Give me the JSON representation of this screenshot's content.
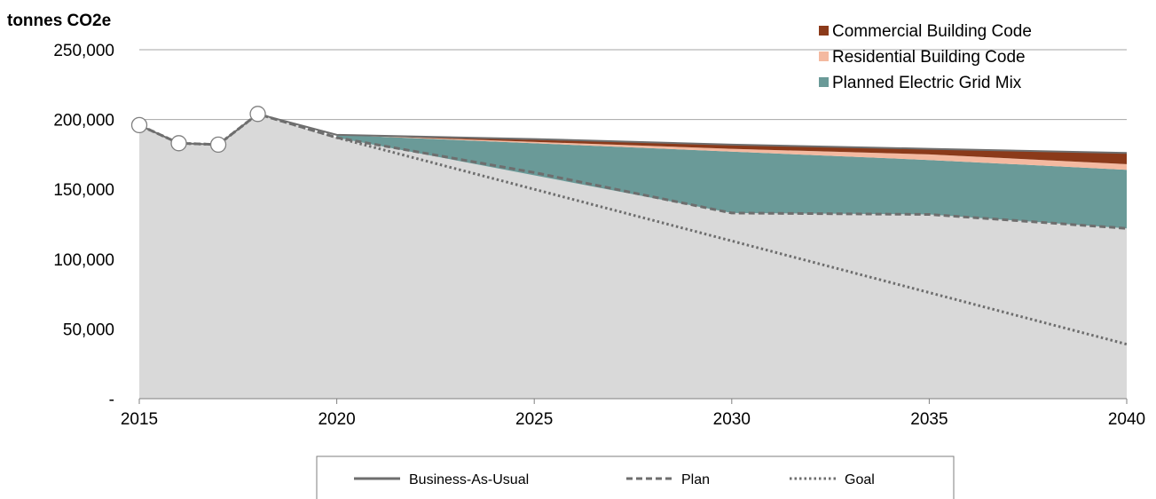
{
  "chart_data": {
    "type": "area",
    "ylabel": "tonnes CO2e",
    "xlabel": "",
    "xlim": [
      2015,
      2040
    ],
    "ylim": [
      0,
      250000
    ],
    "x_ticks": [
      "2015",
      "2020",
      "2025",
      "2030",
      "2035",
      "2040"
    ],
    "y_ticks": [
      "-",
      "50,000",
      "100,000",
      "150,000",
      "200,000",
      "250,000"
    ],
    "gridlines": [
      200000,
      250000
    ],
    "historical": {
      "x": [
        2015,
        2016,
        2017,
        2018,
        2020
      ],
      "y": [
        196000,
        183000,
        182000,
        204000,
        188000
      ]
    },
    "stacked_wedges": [
      {
        "name": "Planned Electric Grid Mix",
        "color": "#6a9a98",
        "x": [
          2020,
          2030,
          2035,
          2040
        ],
        "lower": [
          187000,
          133000,
          132000,
          122000
        ],
        "upper": [
          189000,
          177000,
          171000,
          164000
        ]
      },
      {
        "name": "Residential Building Code",
        "color": "#f4b9a0",
        "x": [
          2020,
          2030,
          2035,
          2040
        ],
        "lower": [
          189000,
          177000,
          171000,
          164000
        ],
        "upper": [
          189000,
          179000,
          175000,
          168000
        ]
      },
      {
        "name": "Commercial Building Code",
        "color": "#8b3a1a",
        "x": [
          2020,
          2030,
          2035,
          2040
        ],
        "lower": [
          189000,
          179000,
          175000,
          168000
        ],
        "upper": [
          189000,
          182000,
          179000,
          176000
        ]
      }
    ],
    "series": [
      {
        "name": "Business-As-Usual",
        "style": "solid",
        "x": [
          2015,
          2016,
          2017,
          2018,
          2020,
          2025,
          2030,
          2035,
          2040
        ],
        "y": [
          196000,
          183000,
          182000,
          204000,
          189000,
          186000,
          182000,
          179000,
          176000
        ]
      },
      {
        "name": "Plan",
        "style": "dashed",
        "x": [
          2015,
          2016,
          2017,
          2018,
          2020,
          2025,
          2030,
          2035,
          2040
        ],
        "y": [
          196000,
          183000,
          182000,
          204000,
          187000,
          162000,
          133000,
          132000,
          122000
        ]
      },
      {
        "name": "Goal",
        "style": "dotted",
        "x": [
          2015,
          2016,
          2017,
          2018,
          2020,
          2040
        ],
        "y": [
          196000,
          183000,
          182000,
          204000,
          187000,
          39000
        ]
      }
    ],
    "legend_top": [
      "Commercial Building Code",
      "Residential Building Code",
      "Planned Electric Grid Mix"
    ],
    "legend_bottom": [
      "Business-As-Usual",
      "Plan",
      "Goal"
    ],
    "colors": {
      "baseline_area": "#d9d9d9",
      "line": "#6e6e6e",
      "grid": "#a6a6a6",
      "marker_fill": "#ffffff"
    }
  }
}
